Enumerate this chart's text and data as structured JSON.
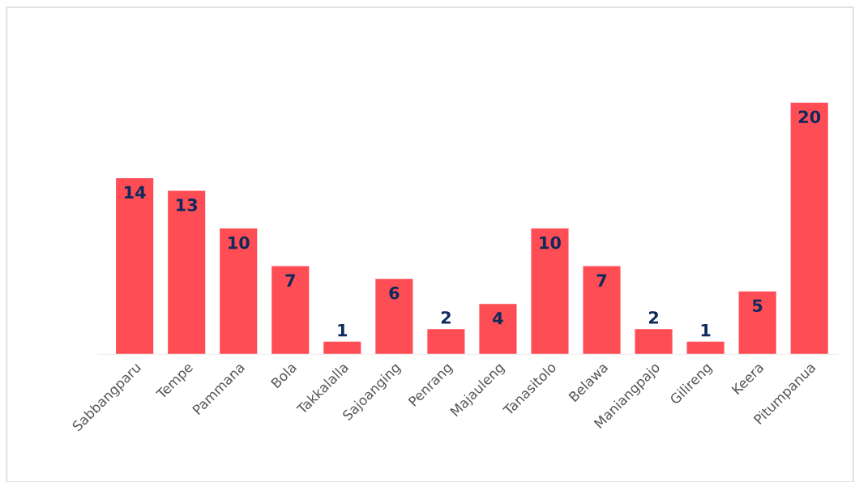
{
  "chart_data": {
    "type": "bar",
    "categories": [
      "Sabbangparu",
      "Tempe",
      "Pammana",
      "Bola",
      "Takkalalla",
      "Sajoanging",
      "Penrang",
      "Majauleng",
      "Tanasitolo",
      "Belawa",
      "Maniangpajo",
      "Gilireng",
      "Keera",
      "Pitumpanua"
    ],
    "values": [
      14,
      13,
      10,
      7,
      1,
      6,
      2,
      4,
      10,
      7,
      2,
      1,
      5,
      20
    ],
    "color": "#ff4d55",
    "data_labels": true,
    "grid": false
  }
}
